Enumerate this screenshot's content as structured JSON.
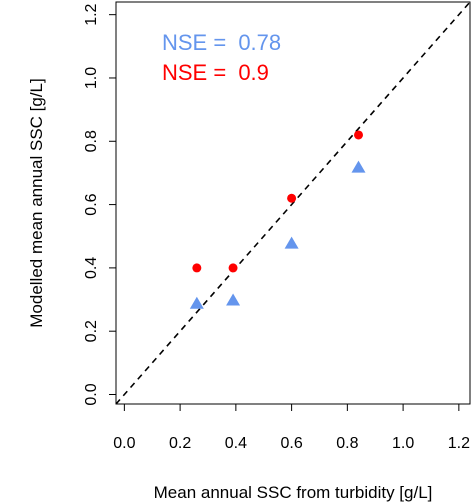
{
  "chart_data": {
    "type": "scatter",
    "xlabel": "Mean annual SSC from turbidity [g/L]",
    "ylabel": "Modelled mean annual SSC [g/L]",
    "xlim": [
      -0.03,
      1.24
    ],
    "ylim": [
      -0.03,
      1.24
    ],
    "x_ticks": [
      "0.0",
      "0.2",
      "0.4",
      "0.6",
      "0.8",
      "1.0",
      "1.2"
    ],
    "y_ticks": [
      "0.0",
      "0.2",
      "0.4",
      "0.6",
      "0.8",
      "1.0",
      "1.2"
    ],
    "grid": false,
    "reference_line": {
      "style": "dashed",
      "slope": 1,
      "intercept": 0
    },
    "annotations": [
      {
        "label": "NSE = ",
        "value": "0.78",
        "color": "#6495ED"
      },
      {
        "label": "NSE = ",
        "value": "0.9",
        "color": "#FF0000"
      }
    ],
    "series": [
      {
        "marker": "triangle",
        "color": "#6495ED",
        "points": [
          {
            "x": 0.26,
            "y": 0.29
          },
          {
            "x": 0.39,
            "y": 0.3
          },
          {
            "x": 0.6,
            "y": 0.48
          },
          {
            "x": 0.84,
            "y": 0.72
          }
        ]
      },
      {
        "marker": "circle",
        "color": "#FF0000",
        "points": [
          {
            "x": 0.26,
            "y": 0.4
          },
          {
            "x": 0.39,
            "y": 0.4
          },
          {
            "x": 0.6,
            "y": 0.62
          },
          {
            "x": 0.84,
            "y": 0.82
          }
        ]
      }
    ]
  }
}
